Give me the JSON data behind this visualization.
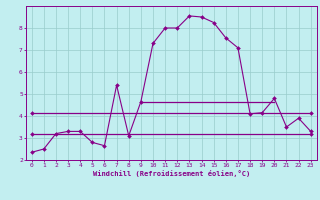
{
  "xlabel": "Windchill (Refroidissement éolien,°C)",
  "xlim": [
    -0.5,
    23.5
  ],
  "ylim": [
    2.0,
    9.0
  ],
  "xticks": [
    0,
    1,
    2,
    3,
    4,
    5,
    6,
    7,
    8,
    9,
    10,
    11,
    12,
    13,
    14,
    15,
    16,
    17,
    18,
    19,
    20,
    21,
    22,
    23
  ],
  "yticks": [
    2,
    3,
    4,
    5,
    6,
    7,
    8
  ],
  "bg_color": "#c2eef0",
  "line_color": "#880088",
  "grid_color": "#99cccc",
  "line1_x": [
    0,
    1,
    2,
    3,
    4,
    5,
    6,
    7,
    8,
    9,
    10,
    11,
    12,
    13,
    14,
    15,
    16,
    17,
    18,
    19,
    20,
    21,
    22,
    23
  ],
  "line1_y": [
    2.35,
    2.5,
    3.2,
    3.3,
    3.3,
    2.8,
    2.65,
    5.4,
    3.1,
    4.65,
    7.3,
    8.0,
    8.0,
    8.55,
    8.5,
    8.25,
    7.55,
    7.1,
    4.1,
    4.15,
    4.8,
    3.5,
    3.9,
    3.3
  ],
  "line2_x": [
    0,
    23
  ],
  "line2_y": [
    4.15,
    4.15
  ],
  "line3_x": [
    0,
    23
  ],
  "line3_y": [
    3.2,
    3.2
  ],
  "line4_x": [
    9,
    20
  ],
  "line4_y": [
    4.65,
    4.65
  ]
}
